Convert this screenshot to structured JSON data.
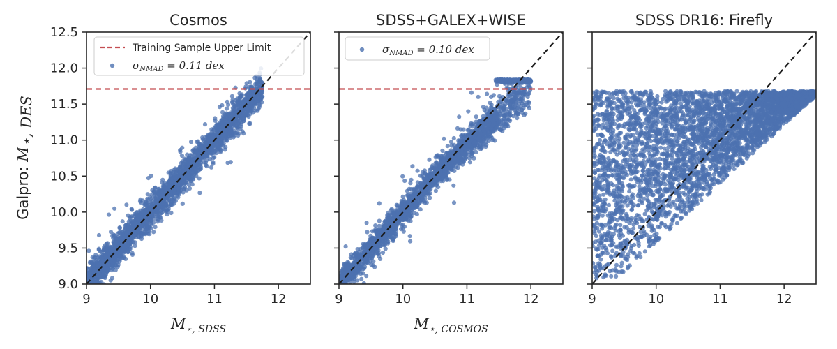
{
  "chart_data": [
    {
      "type": "scatter",
      "title": "Cosmos",
      "xlabel": "M⋆, SDSS",
      "ylabel": "Galpro: M⋆, DES",
      "xlim": [
        9,
        12.5
      ],
      "ylim": [
        9.0,
        12.5
      ],
      "xticks": [
        "9",
        "10",
        "11",
        "12"
      ],
      "yticks": [
        "9.0",
        "9.5",
        "10.0",
        "10.5",
        "11.0",
        "11.5",
        "12.0",
        "12.5"
      ],
      "reference_lines": [
        {
          "kind": "horizontal",
          "y": 11.71,
          "label": "Training Sample Upper Limit",
          "color": "#c44e52",
          "style": "dashed"
        },
        {
          "kind": "one-to-one",
          "label": "",
          "color": "#1a1a1a",
          "style": "dashed"
        }
      ],
      "series": [
        {
          "name": "σNMAD = 0.11 dex",
          "color": "#4c72b0",
          "scatter_dex": 0.11,
          "x_range": [
            9.0,
            11.7
          ]
        }
      ],
      "legend": {
        "position": "top-right",
        "entries": [
          "Training Sample Upper Limit",
          "σNMAD = 0.11 dex"
        ]
      }
    },
    {
      "type": "scatter",
      "title": "SDSS+GALEX+WISE",
      "xlabel": "M⋆, COSMOS",
      "ylabel": "",
      "xlim": [
        9,
        12.5
      ],
      "ylim": [
        9.0,
        12.5
      ],
      "xticks": [
        "9",
        "10",
        "11",
        "12"
      ],
      "reference_lines": [
        {
          "kind": "horizontal",
          "y": 11.71,
          "label": "",
          "color": "#c44e52",
          "style": "dashed"
        },
        {
          "kind": "one-to-one",
          "label": "",
          "color": "#1a1a1a",
          "style": "dashed"
        }
      ],
      "series": [
        {
          "name": "σNMAD = 0.10 dex",
          "color": "#4c72b0",
          "scatter_dex": 0.1,
          "x_range": [
            9.0,
            12.3
          ],
          "saturation_y": 11.84
        }
      ],
      "legend": {
        "position": "top-left",
        "entries": [
          "σNMAD = 0.10 dex"
        ]
      }
    },
    {
      "type": "scatter",
      "title": "SDSS DR16: Firefly",
      "xlabel": "",
      "ylabel": "",
      "xlim": [
        9,
        12.5
      ],
      "ylim": [
        9.0,
        12.5
      ],
      "xticks": [
        "9",
        "10",
        "11",
        "12"
      ],
      "reference_lines": [
        {
          "kind": "one-to-one",
          "label": "",
          "color": "#1a1a1a",
          "style": "dashed"
        }
      ],
      "series": [
        {
          "name": "",
          "color": "#4c72b0",
          "y_max": 11.68,
          "x_range": [
            9.0,
            12.5
          ]
        }
      ]
    }
  ],
  "labels": {
    "panel1_title": "Cosmos",
    "panel2_title": "SDSS+GALEX+WISE",
    "panel3_title": "SDSS DR16: Firefly",
    "ylabel_prefix": "Galpro: ",
    "ylabel_math": "M",
    "ylabel_sub": "⋆, DES",
    "xlabel1_math": "M",
    "xlabel1_sub": "⋆, SDSS",
    "xlabel2_math": "M",
    "xlabel2_sub": "⋆, COSMOS",
    "legend1_line": "Training Sample Upper Limit",
    "legend1_sigma": "σ",
    "legend1_sub": "NMAD",
    "legend1_value": " = 0.11 dex",
    "legend2_sigma": "σ",
    "legend2_sub": "NMAD",
    "legend2_value": " = 0.10 dex"
  }
}
